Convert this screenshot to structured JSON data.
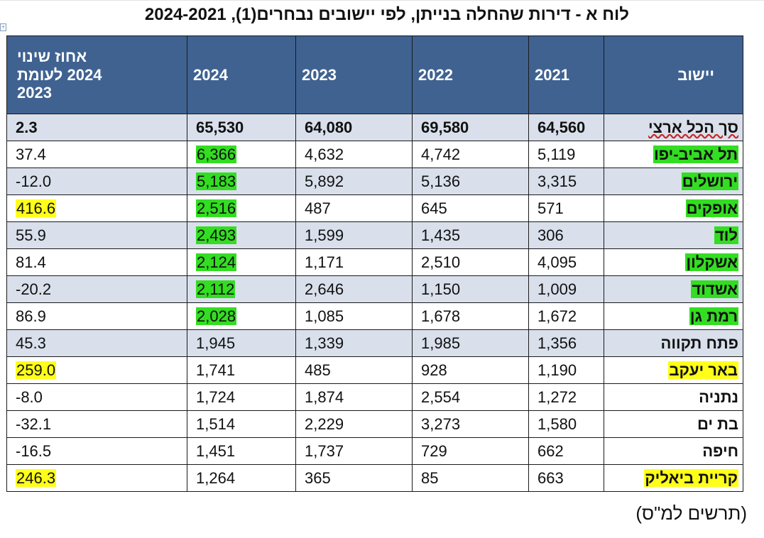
{
  "title": "לוח א - דירות שהחלה בנייתן, לפי יישובים נבחרים(1), 2024-2021",
  "headers": {
    "settlement": "יישוב",
    "y2021": "2021",
    "y2022": "2022",
    "y2023": "2023",
    "y2024": "2024",
    "pct_change": "אחוז שינוי 2024 לעומת 2023"
  },
  "rows": [
    {
      "name": "סך הכל ארצי",
      "y2021": "64,560",
      "y2022": "69,580",
      "y2023": "64,080",
      "y2024": "65,530",
      "pct": "2.3"
    },
    {
      "name": "תל אביב-יפו",
      "y2021": "5,119",
      "y2022": "4,742",
      "y2023": "4,632",
      "y2024": "6,366",
      "pct": "37.4"
    },
    {
      "name": "ירושלים",
      "y2021": "3,315",
      "y2022": "5,136",
      "y2023": "5,892",
      "y2024": "5,183",
      "pct": "-12.0"
    },
    {
      "name": "אופקים",
      "y2021": "571",
      "y2022": "645",
      "y2023": "487",
      "y2024": "2,516",
      "pct": "416.6"
    },
    {
      "name": "לוד",
      "y2021": "306",
      "y2022": "1,435",
      "y2023": "1,599",
      "y2024": "2,493",
      "pct": "55.9"
    },
    {
      "name": "אשקלון",
      "y2021": "4,095",
      "y2022": "2,510",
      "y2023": "1,171",
      "y2024": "2,124",
      "pct": "81.4"
    },
    {
      "name": "אשדוד",
      "y2021": "1,009",
      "y2022": "1,150",
      "y2023": "2,646",
      "y2024": "2,112",
      "pct": "-20.2"
    },
    {
      "name": "רמת גן",
      "y2021": "1,672",
      "y2022": "1,678",
      "y2023": "1,085",
      "y2024": "2,028",
      "pct": "86.9"
    },
    {
      "name": "פתח תקווה",
      "y2021": "1,356",
      "y2022": "1,985",
      "y2023": "1,339",
      "y2024": "1,945",
      "pct": "45.3"
    },
    {
      "name": "באר יעקב",
      "y2021": "1,190",
      "y2022": "928",
      "y2023": "485",
      "y2024": "1,741",
      "pct": "259.0"
    },
    {
      "name": "נתניה",
      "y2021": "1,272",
      "y2022": "2,554",
      "y2023": "1,874",
      "y2024": "1,724",
      "pct": "-8.0"
    },
    {
      "name": "בת ים",
      "y2021": "1,580",
      "y2022": "3,273",
      "y2023": "2,229",
      "y2024": "1,514",
      "pct": "-32.1"
    },
    {
      "name": "חיפה",
      "y2021": "662",
      "y2022": "729",
      "y2023": "1,737",
      "y2024": "1,451",
      "pct": "-16.5"
    },
    {
      "name": "קריית ביאליק",
      "y2021": "663",
      "y2022": "85",
      "y2023": "365",
      "y2024": "1,264",
      "pct": "246.3"
    }
  ],
  "source_note": "(תרשים למ\"ס)",
  "colors": {
    "header_bg": "#3f6291",
    "band_bg": "#d9e0ec",
    "highlight_green": "#33dd22",
    "highlight_yellow": "#ffff1a"
  }
}
